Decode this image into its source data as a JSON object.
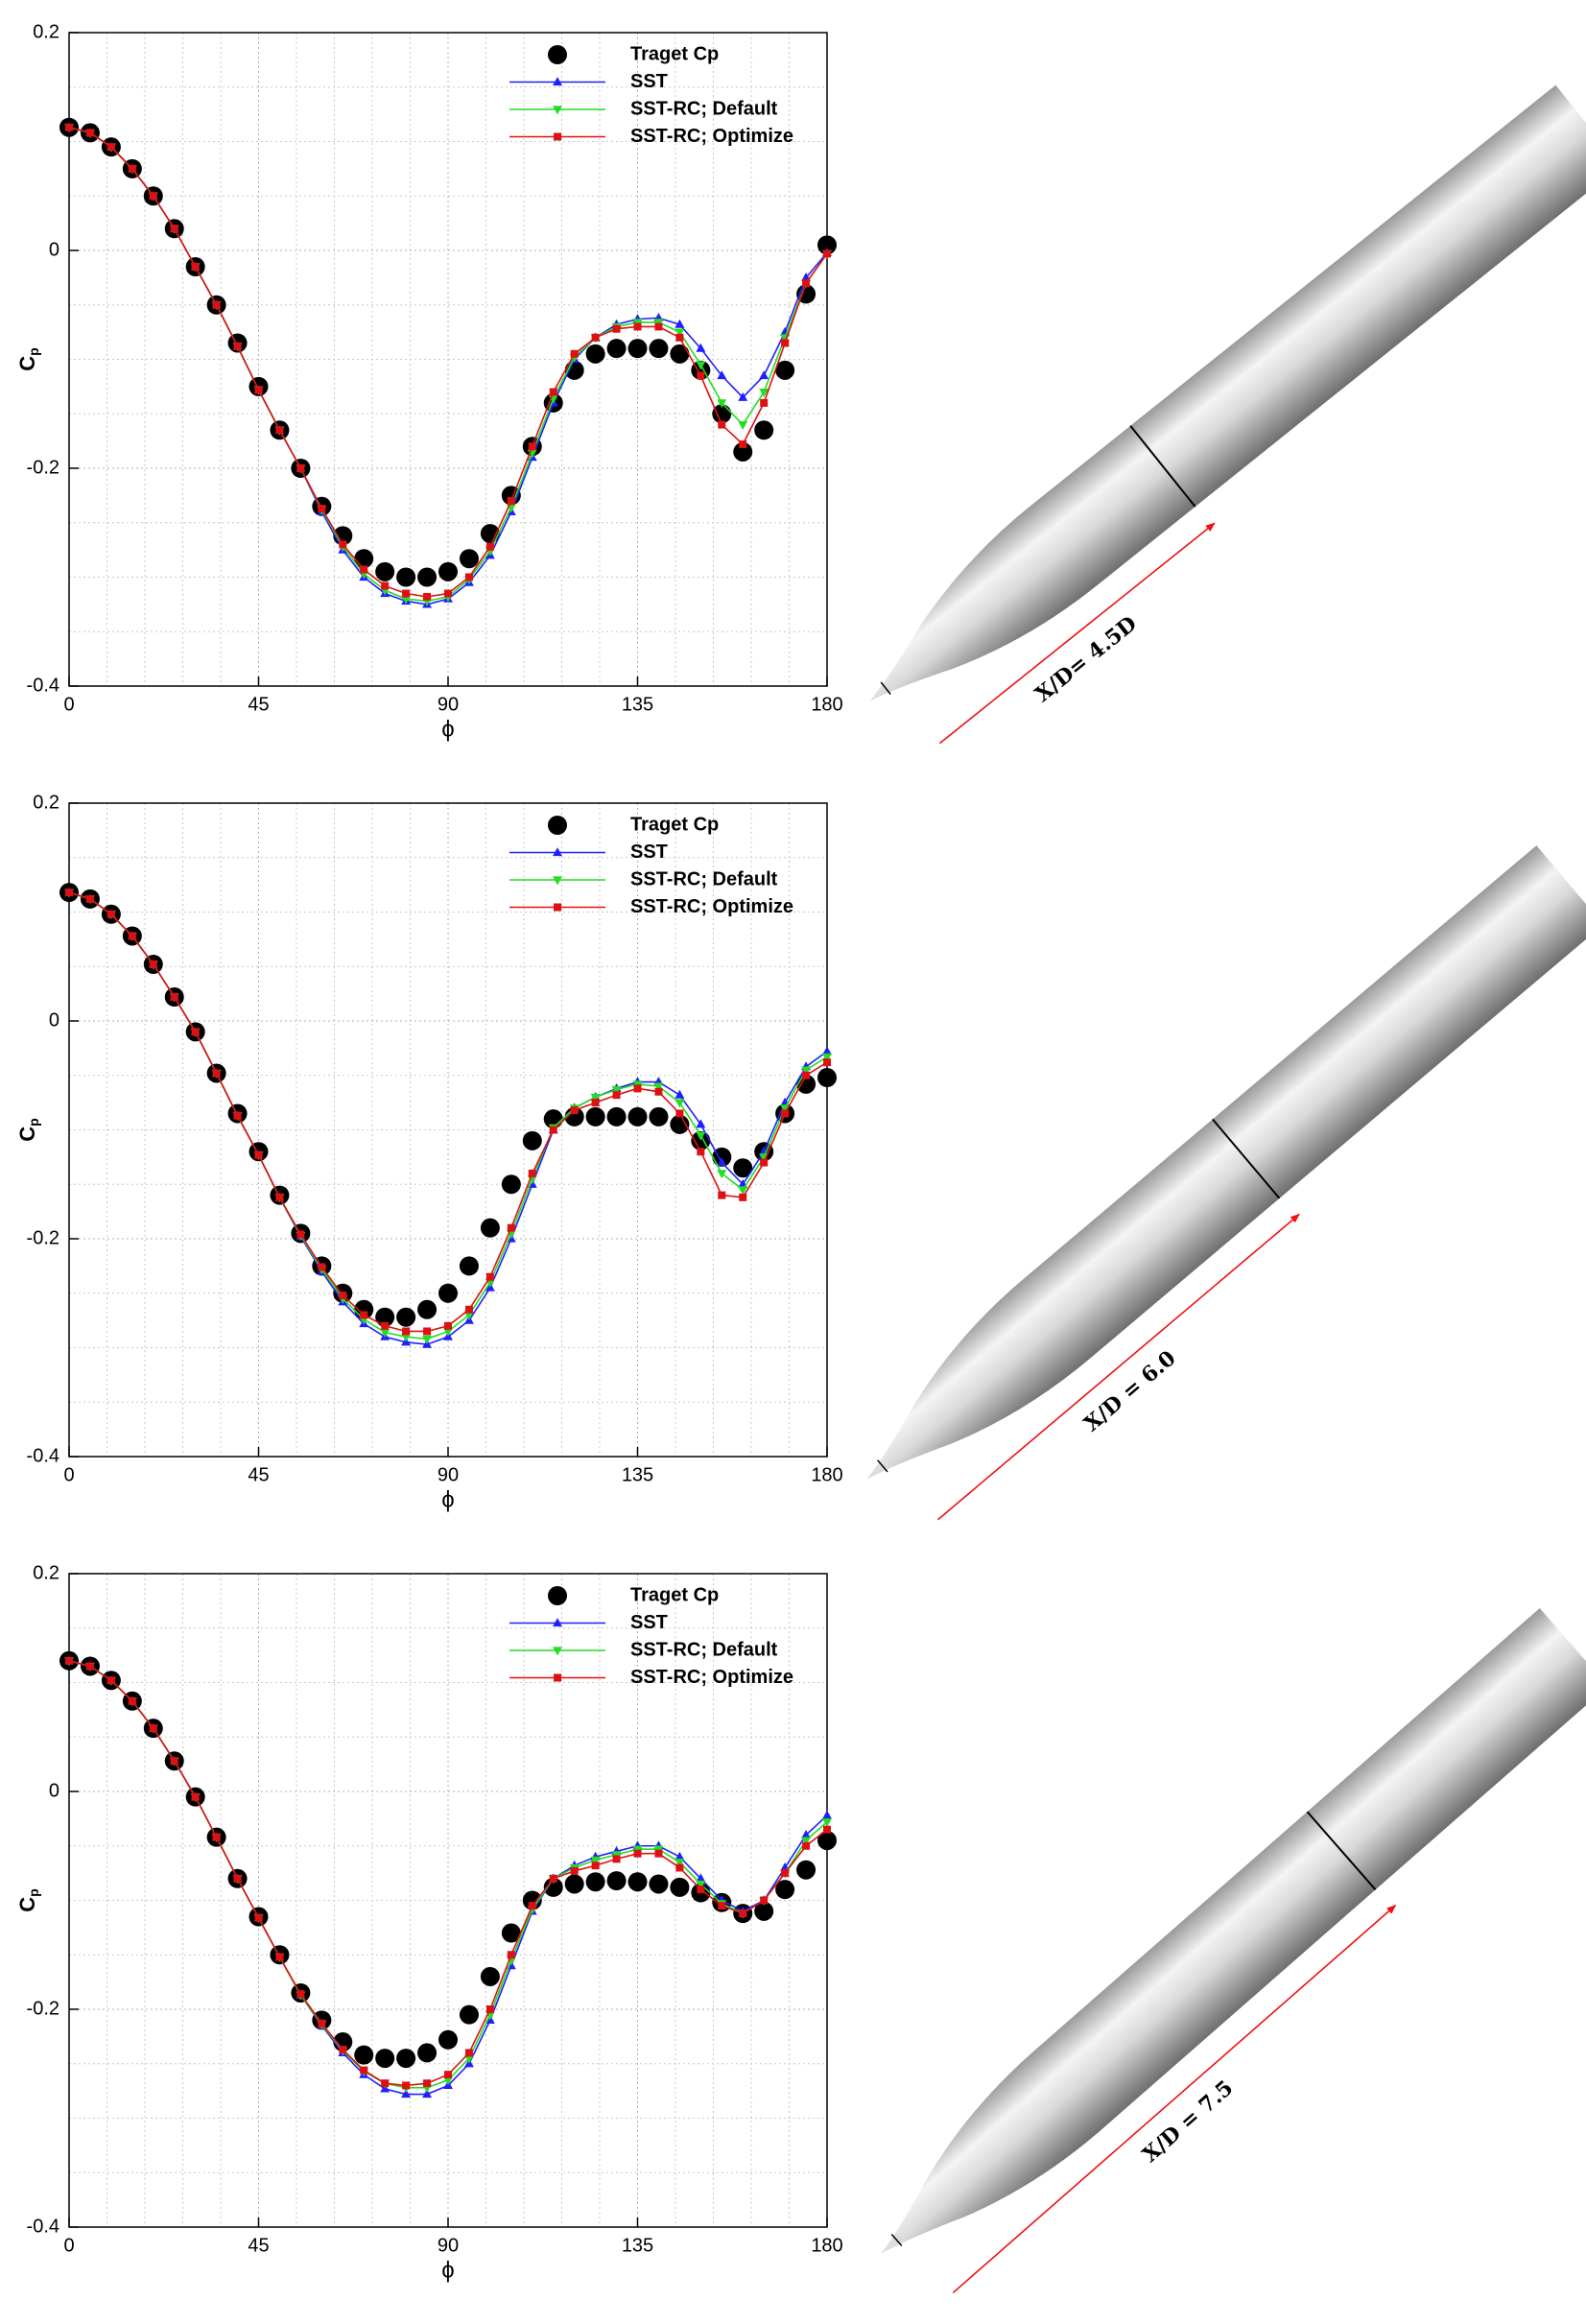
{
  "chart_data": [
    {
      "type": "line",
      "annotation": "X/D= 4.5D",
      "xlabel": "ϕ",
      "ylabel": "C",
      "ylabel_subscript": "p",
      "xlim": [
        0,
        180
      ],
      "xticks": [
        0,
        45,
        90,
        135,
        180
      ],
      "ylim": [
        -0.4,
        0.2
      ],
      "yticks": [
        -0.4,
        -0.2,
        0,
        0.2
      ],
      "grid": true,
      "legend": "top-right",
      "x": [
        0,
        5,
        10,
        15,
        20,
        25,
        30,
        35,
        40,
        45,
        50,
        55,
        60,
        65,
        70,
        75,
        80,
        85,
        90,
        95,
        100,
        105,
        110,
        115,
        120,
        125,
        130,
        135,
        140,
        145,
        150,
        155,
        160,
        165,
        170,
        175,
        180
      ],
      "series": [
        {
          "name": "Traget Cp",
          "color": "#000000",
          "marker": "circle",
          "line": false,
          "values": [
            0.113,
            0.108,
            0.095,
            0.075,
            0.05,
            0.02,
            -0.015,
            -0.05,
            -0.085,
            -0.125,
            -0.165,
            -0.2,
            -0.235,
            -0.262,
            -0.283,
            -0.295,
            -0.3,
            -0.3,
            -0.295,
            -0.283,
            -0.26,
            -0.225,
            -0.18,
            -0.14,
            -0.11,
            -0.095,
            -0.09,
            -0.09,
            -0.09,
            -0.095,
            -0.11,
            -0.15,
            -0.185,
            -0.165,
            -0.11,
            -0.04,
            0.005
          ]
        },
        {
          "name": "SST",
          "color": "#1f1fff",
          "marker": "triangle-up",
          "line": true,
          "values": [
            0.113,
            0.108,
            0.095,
            0.075,
            0.05,
            0.02,
            -0.015,
            -0.05,
            -0.088,
            -0.128,
            -0.165,
            -0.2,
            -0.24,
            -0.275,
            -0.3,
            -0.315,
            -0.322,
            -0.325,
            -0.32,
            -0.305,
            -0.28,
            -0.24,
            -0.19,
            -0.14,
            -0.1,
            -0.08,
            -0.068,
            -0.063,
            -0.062,
            -0.068,
            -0.09,
            -0.115,
            -0.135,
            -0.115,
            -0.075,
            -0.025,
            -0.002
          ]
        },
        {
          "name": "SST-RC; Default",
          "color": "#22dd22",
          "marker": "triangle-down",
          "line": true,
          "values": [
            0.113,
            0.108,
            0.095,
            0.075,
            0.05,
            0.02,
            -0.015,
            -0.05,
            -0.088,
            -0.128,
            -0.165,
            -0.2,
            -0.238,
            -0.272,
            -0.297,
            -0.312,
            -0.32,
            -0.322,
            -0.318,
            -0.302,
            -0.276,
            -0.236,
            -0.186,
            -0.136,
            -0.098,
            -0.08,
            -0.07,
            -0.066,
            -0.066,
            -0.075,
            -0.105,
            -0.14,
            -0.16,
            -0.13,
            -0.08,
            -0.03,
            -0.003
          ]
        },
        {
          "name": "SST-RC; Optimize",
          "color": "#dd1111",
          "marker": "square",
          "line": true,
          "values": [
            0.113,
            0.108,
            0.095,
            0.075,
            0.05,
            0.02,
            -0.015,
            -0.05,
            -0.088,
            -0.128,
            -0.165,
            -0.2,
            -0.237,
            -0.27,
            -0.293,
            -0.308,
            -0.315,
            -0.318,
            -0.315,
            -0.3,
            -0.272,
            -0.23,
            -0.18,
            -0.13,
            -0.095,
            -0.08,
            -0.072,
            -0.07,
            -0.07,
            -0.08,
            -0.115,
            -0.16,
            -0.178,
            -0.14,
            -0.085,
            -0.03,
            -0.003
          ]
        }
      ]
    },
    {
      "type": "line",
      "annotation": "X/D = 6.0",
      "xlabel": "ϕ",
      "ylabel": "C",
      "ylabel_subscript": "p",
      "xlim": [
        0,
        180
      ],
      "xticks": [
        0,
        45,
        90,
        135,
        180
      ],
      "ylim": [
        -0.4,
        0.2
      ],
      "yticks": [
        -0.4,
        -0.2,
        0,
        0.2
      ],
      "grid": true,
      "legend": "top-right",
      "x": [
        0,
        5,
        10,
        15,
        20,
        25,
        30,
        35,
        40,
        45,
        50,
        55,
        60,
        65,
        70,
        75,
        80,
        85,
        90,
        95,
        100,
        105,
        110,
        115,
        120,
        125,
        130,
        135,
        140,
        145,
        150,
        155,
        160,
        165,
        170,
        175,
        180
      ],
      "series": [
        {
          "name": "Traget Cp",
          "color": "#000000",
          "marker": "circle",
          "line": false,
          "values": [
            0.118,
            0.112,
            0.098,
            0.078,
            0.052,
            0.022,
            -0.01,
            -0.048,
            -0.085,
            -0.12,
            -0.16,
            -0.195,
            -0.225,
            -0.25,
            -0.265,
            -0.272,
            -0.272,
            -0.265,
            -0.25,
            -0.225,
            -0.19,
            -0.15,
            -0.11,
            -0.09,
            -0.088,
            -0.088,
            -0.088,
            -0.088,
            -0.088,
            -0.095,
            -0.11,
            -0.125,
            -0.135,
            -0.12,
            -0.085,
            -0.058,
            -0.052
          ]
        },
        {
          "name": "SST",
          "color": "#1f1fff",
          "marker": "triangle-up",
          "line": true,
          "values": [
            0.118,
            0.112,
            0.098,
            0.078,
            0.052,
            0.022,
            -0.01,
            -0.048,
            -0.087,
            -0.123,
            -0.162,
            -0.198,
            -0.23,
            -0.258,
            -0.278,
            -0.29,
            -0.295,
            -0.297,
            -0.29,
            -0.275,
            -0.245,
            -0.2,
            -0.15,
            -0.1,
            -0.08,
            -0.07,
            -0.062,
            -0.056,
            -0.056,
            -0.068,
            -0.095,
            -0.13,
            -0.15,
            -0.12,
            -0.075,
            -0.042,
            -0.028
          ]
        },
        {
          "name": "SST-RC; Default",
          "color": "#22dd22",
          "marker": "triangle-down",
          "line": true,
          "values": [
            0.118,
            0.112,
            0.098,
            0.078,
            0.052,
            0.022,
            -0.01,
            -0.048,
            -0.087,
            -0.123,
            -0.162,
            -0.197,
            -0.228,
            -0.255,
            -0.274,
            -0.286,
            -0.29,
            -0.292,
            -0.285,
            -0.27,
            -0.24,
            -0.195,
            -0.145,
            -0.098,
            -0.08,
            -0.07,
            -0.063,
            -0.058,
            -0.06,
            -0.075,
            -0.105,
            -0.14,
            -0.155,
            -0.125,
            -0.08,
            -0.045,
            -0.033
          ]
        },
        {
          "name": "SST-RC; Optimize",
          "color": "#dd1111",
          "marker": "square",
          "line": true,
          "values": [
            0.118,
            0.112,
            0.098,
            0.078,
            0.052,
            0.022,
            -0.01,
            -0.048,
            -0.087,
            -0.123,
            -0.162,
            -0.196,
            -0.226,
            -0.252,
            -0.27,
            -0.28,
            -0.285,
            -0.285,
            -0.28,
            -0.265,
            -0.235,
            -0.19,
            -0.14,
            -0.1,
            -0.082,
            -0.075,
            -0.068,
            -0.062,
            -0.065,
            -0.085,
            -0.12,
            -0.16,
            -0.162,
            -0.13,
            -0.085,
            -0.05,
            -0.038
          ]
        }
      ]
    },
    {
      "type": "line",
      "annotation": "X/D = 7.5",
      "xlabel": "ϕ",
      "ylabel": "C",
      "ylabel_subscript": "p",
      "xlim": [
        0,
        180
      ],
      "xticks": [
        0,
        45,
        90,
        135,
        180
      ],
      "ylim": [
        -0.4,
        0.2
      ],
      "yticks": [
        -0.4,
        -0.2,
        0,
        0.2
      ],
      "grid": true,
      "legend": "top-right",
      "x": [
        0,
        5,
        10,
        15,
        20,
        25,
        30,
        35,
        40,
        45,
        50,
        55,
        60,
        65,
        70,
        75,
        80,
        85,
        90,
        95,
        100,
        105,
        110,
        115,
        120,
        125,
        130,
        135,
        140,
        145,
        150,
        155,
        160,
        165,
        170,
        175,
        180
      ],
      "series": [
        {
          "name": "Traget Cp",
          "color": "#000000",
          "marker": "circle",
          "line": false,
          "values": [
            0.12,
            0.115,
            0.102,
            0.083,
            0.058,
            0.028,
            -0.005,
            -0.042,
            -0.08,
            -0.115,
            -0.15,
            -0.185,
            -0.21,
            -0.23,
            -0.242,
            -0.245,
            -0.245,
            -0.24,
            -0.228,
            -0.205,
            -0.17,
            -0.13,
            -0.1,
            -0.088,
            -0.085,
            -0.083,
            -0.082,
            -0.083,
            -0.085,
            -0.088,
            -0.093,
            -0.102,
            -0.112,
            -0.11,
            -0.09,
            -0.072,
            -0.045
          ]
        },
        {
          "name": "SST",
          "color": "#1f1fff",
          "marker": "triangle-up",
          "line": true,
          "values": [
            0.12,
            0.115,
            0.102,
            0.083,
            0.058,
            0.028,
            -0.005,
            -0.042,
            -0.08,
            -0.116,
            -0.152,
            -0.187,
            -0.215,
            -0.24,
            -0.26,
            -0.273,
            -0.278,
            -0.278,
            -0.27,
            -0.25,
            -0.21,
            -0.16,
            -0.11,
            -0.08,
            -0.068,
            -0.06,
            -0.055,
            -0.05,
            -0.05,
            -0.06,
            -0.08,
            -0.1,
            -0.11,
            -0.1,
            -0.07,
            -0.04,
            -0.022
          ]
        },
        {
          "name": "SST-RC; Default",
          "color": "#22dd22",
          "marker": "triangle-down",
          "line": true,
          "values": [
            0.12,
            0.115,
            0.102,
            0.083,
            0.058,
            0.028,
            -0.005,
            -0.042,
            -0.08,
            -0.116,
            -0.152,
            -0.187,
            -0.214,
            -0.238,
            -0.257,
            -0.268,
            -0.272,
            -0.272,
            -0.265,
            -0.245,
            -0.205,
            -0.155,
            -0.108,
            -0.08,
            -0.07,
            -0.063,
            -0.058,
            -0.053,
            -0.053,
            -0.065,
            -0.085,
            -0.103,
            -0.112,
            -0.1,
            -0.075,
            -0.045,
            -0.028
          ]
        },
        {
          "name": "SST-RC; Optimize",
          "color": "#dd1111",
          "marker": "square",
          "line": true,
          "values": [
            0.12,
            0.115,
            0.102,
            0.083,
            0.058,
            0.028,
            -0.005,
            -0.042,
            -0.08,
            -0.116,
            -0.152,
            -0.186,
            -0.213,
            -0.237,
            -0.256,
            -0.268,
            -0.27,
            -0.268,
            -0.26,
            -0.24,
            -0.2,
            -0.15,
            -0.105,
            -0.08,
            -0.073,
            -0.068,
            -0.062,
            -0.057,
            -0.057,
            -0.07,
            -0.09,
            -0.105,
            -0.112,
            -0.1,
            -0.075,
            -0.05,
            -0.035
          ]
        }
      ]
    }
  ]
}
